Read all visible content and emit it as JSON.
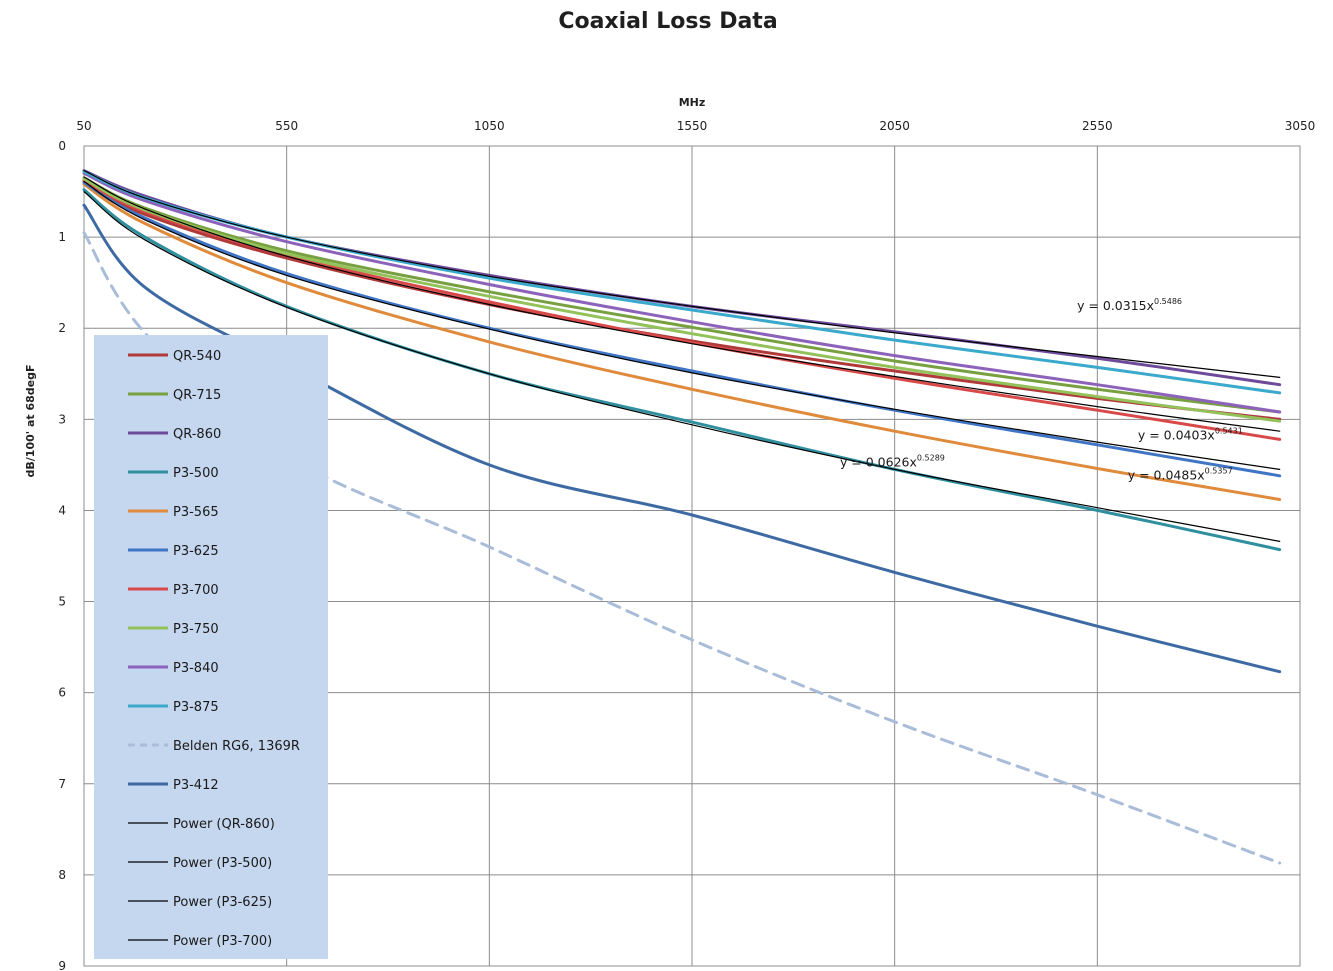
{
  "chart_data": {
    "type": "line",
    "title": "Coaxial Loss Data",
    "xlabel": "MHz",
    "ylabel": "dB/100' at 68degF",
    "x_axis_position": "top",
    "y_axis_inverted": true,
    "xlim": [
      50,
      3050
    ],
    "ylim": [
      0,
      9
    ],
    "x_ticks": [
      "50",
      "550",
      "1050",
      "1550",
      "2050",
      "2550",
      "3050"
    ],
    "y_ticks": [
      "0",
      "1",
      "2",
      "3",
      "4",
      "5",
      "6",
      "7",
      "8",
      "9"
    ],
    "grid": true,
    "legend_placement": "left",
    "series": [
      {
        "name": "QR-540",
        "color": "#b03a3a",
        "width": 3,
        "dash": "",
        "x": [
          50,
          200,
          550,
          1050,
          1550,
          2050,
          2550,
          3000
        ],
        "y": [
          0.4,
          0.75,
          1.23,
          1.74,
          2.14,
          2.47,
          2.77,
          3.0
        ]
      },
      {
        "name": "QR-715",
        "color": "#77a040",
        "width": 3,
        "dash": "",
        "x": [
          50,
          200,
          550,
          1050,
          1550,
          2050,
          2550,
          3000
        ],
        "y": [
          0.35,
          0.68,
          1.15,
          1.6,
          1.99,
          2.36,
          2.67,
          2.92
        ]
      },
      {
        "name": "QR-860",
        "color": "#6d4a9a",
        "width": 3,
        "dash": "",
        "x": [
          50,
          200,
          550,
          1050,
          1550,
          2050,
          2550,
          3000
        ],
        "y": [
          0.27,
          0.55,
          1.0,
          1.42,
          1.76,
          2.04,
          2.33,
          2.62
        ]
      },
      {
        "name": "P3-500",
        "color": "#2f8f9f",
        "width": 3,
        "dash": "",
        "x": [
          50,
          200,
          550,
          1050,
          1550,
          2050,
          2550,
          3000
        ],
        "y": [
          0.48,
          1.0,
          1.76,
          2.5,
          3.03,
          3.55,
          4.0,
          4.43
        ]
      },
      {
        "name": "P3-565",
        "color": "#e08a3c",
        "width": 3,
        "dash": "",
        "x": [
          50,
          200,
          550,
          1050,
          1550,
          2050,
          2550,
          3000
        ],
        "y": [
          0.42,
          0.85,
          1.5,
          2.15,
          2.67,
          3.13,
          3.54,
          3.88
        ]
      },
      {
        "name": "P3-625",
        "color": "#3f75c4",
        "width": 3,
        "dash": "",
        "x": [
          50,
          200,
          550,
          1050,
          1550,
          2050,
          2550,
          3000
        ],
        "y": [
          0.4,
          0.79,
          1.4,
          2.0,
          2.47,
          2.9,
          3.28,
          3.62
        ]
      },
      {
        "name": "P3-700",
        "color": "#d84a4a",
        "width": 3,
        "dash": "",
        "x": [
          50,
          200,
          550,
          1050,
          1550,
          2050,
          2550,
          3000
        ],
        "y": [
          0.38,
          0.72,
          1.2,
          1.71,
          2.16,
          2.55,
          2.9,
          3.22
        ]
      },
      {
        "name": "P3-750",
        "color": "#93c15a",
        "width": 3,
        "dash": "",
        "x": [
          50,
          200,
          550,
          1050,
          1550,
          2050,
          2550,
          3000
        ],
        "y": [
          0.36,
          0.7,
          1.18,
          1.65,
          2.06,
          2.43,
          2.75,
          3.02
        ]
      },
      {
        "name": "P3-840",
        "color": "#8c62bb",
        "width": 3,
        "dash": "",
        "x": [
          50,
          200,
          550,
          1050,
          1550,
          2050,
          2550,
          3000
        ],
        "y": [
          0.3,
          0.6,
          1.05,
          1.52,
          1.93,
          2.3,
          2.62,
          2.92
        ]
      },
      {
        "name": "P3-875",
        "color": "#3aa9cc",
        "width": 3,
        "dash": "",
        "x": [
          50,
          200,
          550,
          1050,
          1550,
          2050,
          2550,
          3000
        ],
        "y": [
          0.28,
          0.57,
          1.0,
          1.45,
          1.8,
          2.13,
          2.43,
          2.71
        ]
      },
      {
        "name": "Belden RG6, 1369R",
        "color": "#a9bcd8",
        "width": 3,
        "dash": "12,8",
        "x": [
          50,
          200,
          550,
          1050,
          1550,
          2050,
          2550,
          3000
        ],
        "y": [
          0.95,
          2.05,
          3.4,
          4.4,
          5.42,
          6.32,
          7.12,
          7.87
        ]
      },
      {
        "name": "P3-412",
        "color": "#3e6aa4",
        "width": 3,
        "dash": "",
        "x": [
          50,
          200,
          550,
          1050,
          1550,
          2050,
          2550,
          3000
        ],
        "y": [
          0.65,
          1.55,
          2.4,
          3.5,
          4.05,
          4.68,
          5.27,
          5.77
        ]
      },
      {
        "name": "Power (QR-860)",
        "color": "#000000",
        "width": 1.2,
        "dash": "",
        "x": [
          50,
          200,
          550,
          1050,
          1550,
          2050,
          2550,
          3000
        ],
        "y": [
          0.27,
          0.57,
          1.0,
          1.43,
          1.76,
          2.05,
          2.31,
          2.54
        ]
      },
      {
        "name": "Power (P3-500)",
        "color": "#000000",
        "width": 1.2,
        "dash": "",
        "x": [
          50,
          200,
          550,
          1050,
          1550,
          2050,
          2550,
          3000
        ],
        "y": [
          0.5,
          1.03,
          1.77,
          2.5,
          3.06,
          3.55,
          3.97,
          4.34
        ]
      },
      {
        "name": "Power (P3-625)",
        "color": "#000000",
        "width": 1.2,
        "dash": "",
        "x": [
          50,
          200,
          550,
          1050,
          1550,
          2050,
          2550,
          3000
        ],
        "y": [
          0.39,
          0.81,
          1.42,
          2.01,
          2.49,
          2.89,
          3.25,
          3.55
        ]
      },
      {
        "name": "Power (P3-700)",
        "color": "#000000",
        "width": 1.2,
        "dash": "",
        "x": [
          50,
          200,
          550,
          1050,
          1550,
          2050,
          2550,
          3000
        ],
        "y": [
          0.34,
          0.69,
          1.21,
          1.74,
          2.17,
          2.53,
          2.86,
          3.13
        ]
      }
    ],
    "annotations": [
      {
        "base": "y = 0.0315x",
        "exp": "0.5486",
        "x": 2500,
        "y": 1.8
      },
      {
        "base": "y = 0.0403x",
        "exp": "0.5431",
        "x": 2650,
        "y": 3.22
      },
      {
        "base": "y = 0.0626x",
        "exp": "0.5289",
        "x": 1915,
        "y": 3.52
      },
      {
        "base": "y = 0.0485x",
        "exp": "0.5357",
        "x": 2625,
        "y": 3.66
      }
    ]
  }
}
